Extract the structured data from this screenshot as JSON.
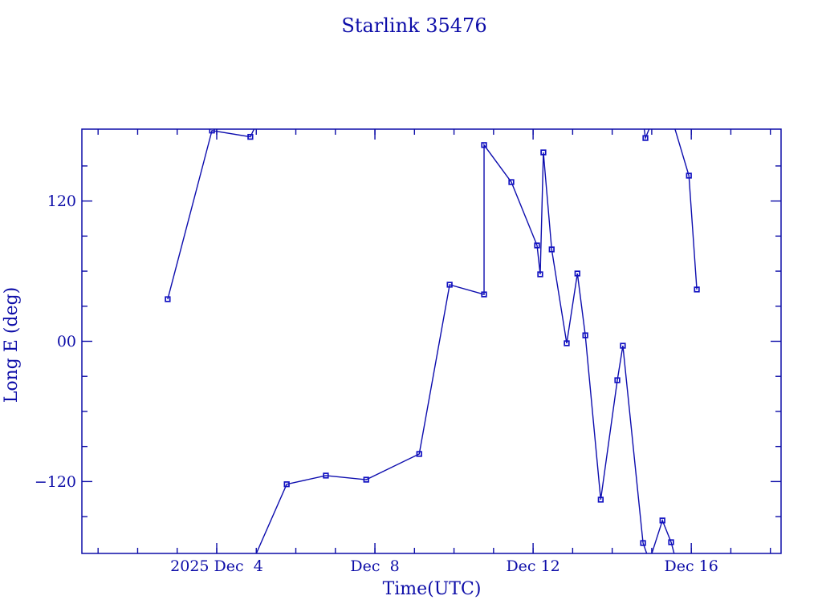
{
  "chart_data": {
    "type": "line",
    "title": "Starlink 35476",
    "xlabel": "Time(UTC)",
    "ylabel": "Long E (deg)",
    "x_unit": "day of December 2025 (UTC)",
    "xlim": [
      0.59,
      18.27
    ],
    "ylim": [
      -181.5,
      181.5
    ],
    "grid": false,
    "legend": "none",
    "x_major_ticks": [
      {
        "value": 4,
        "label": "2025 Dec  4"
      },
      {
        "value": 8,
        "label": "Dec  8"
      },
      {
        "value": 12,
        "label": "Dec 12"
      },
      {
        "value": 16,
        "label": "Dec 16"
      }
    ],
    "x_minor_tick_values": [
      1,
      2,
      3,
      4,
      5,
      6,
      7,
      8,
      9,
      10,
      11,
      12,
      13,
      14,
      15,
      16,
      17,
      18
    ],
    "y_major_ticks": [
      {
        "value": 120,
        "label": "120"
      },
      {
        "value": 0,
        "label": "00"
      },
      {
        "value": -120,
        "label": "−120"
      }
    ],
    "y_minor_tick_values": [
      150,
      90,
      60,
      30,
      -30,
      -60,
      -90,
      -150
    ],
    "marker": "open-square",
    "points": [
      [
        2.76,
        36.0
      ],
      [
        3.88,
        180.3
      ],
      [
        4.85,
        174.9
      ],
      [
        5.77,
        -122.3
      ],
      [
        6.76,
        -114.9
      ],
      [
        7.78,
        -118.4
      ],
      [
        9.12,
        -96.4
      ],
      [
        9.89,
        48.4
      ],
      [
        10.76,
        40.1
      ],
      [
        10.76,
        167.9
      ],
      [
        11.45,
        136.2
      ],
      [
        12.1,
        82.0
      ],
      [
        12.18,
        57.3
      ],
      [
        12.26,
        161.6
      ],
      [
        12.47,
        78.6
      ],
      [
        12.85,
        -1.7
      ],
      [
        13.12,
        58.0
      ],
      [
        13.32,
        5.1
      ],
      [
        13.71,
        -135.5
      ],
      [
        14.13,
        -33.3
      ],
      [
        14.27,
        -3.8
      ],
      [
        14.78,
        -172.6
      ],
      [
        14.84,
        173.9
      ],
      [
        15.27,
        -153.3
      ],
      [
        15.49,
        -171.9
      ],
      [
        15.94,
        141.7
      ],
      [
        16.14,
        44.3
      ]
    ],
    "segments_note": "Polyline segments as drawn; endpoints beyond +/-181.5 are virtual vertices reproducing the original +/-180 deg longitude wrap clipping.",
    "segments": [
      [
        [
          2.76,
          36.0
        ],
        [
          3.88,
          180.3
        ],
        [
          4.85,
          174.9
        ],
        [
          5.02,
          187
        ]
      ],
      [
        [
          4.93,
          -187
        ],
        [
          5.77,
          -122.3
        ],
        [
          6.76,
          -114.9
        ],
        [
          7.78,
          -118.4
        ],
        [
          9.12,
          -96.4
        ],
        [
          9.89,
          48.4
        ],
        [
          10.76,
          40.1
        ],
        [
          10.76,
          167.9
        ],
        [
          11.45,
          136.2
        ],
        [
          12.1,
          82.0
        ],
        [
          12.18,
          57.3
        ],
        [
          12.26,
          161.6
        ],
        [
          12.47,
          78.6
        ],
        [
          12.85,
          -1.7
        ],
        [
          13.12,
          58.0
        ],
        [
          13.32,
          5.1
        ],
        [
          13.71,
          -135.5
        ],
        [
          14.13,
          -33.3
        ],
        [
          14.27,
          -3.8
        ],
        [
          14.78,
          -172.6
        ],
        [
          14.93,
          -187
        ]
      ],
      [
        [
          14.79,
          187
        ],
        [
          14.84,
          173.9
        ],
        [
          15.0,
          187
        ]
      ],
      [
        [
          14.95,
          -187
        ],
        [
          15.27,
          -153.3
        ],
        [
          15.49,
          -171.9
        ],
        [
          15.61,
          -187
        ]
      ],
      [
        [
          15.54,
          187
        ],
        [
          15.94,
          141.7
        ],
        [
          16.14,
          44.3
        ]
      ]
    ],
    "colors": {
      "ink": "#0d0da8",
      "line": "#0d0dae",
      "marker": "#1111c2",
      "background": "#ffffff"
    }
  }
}
